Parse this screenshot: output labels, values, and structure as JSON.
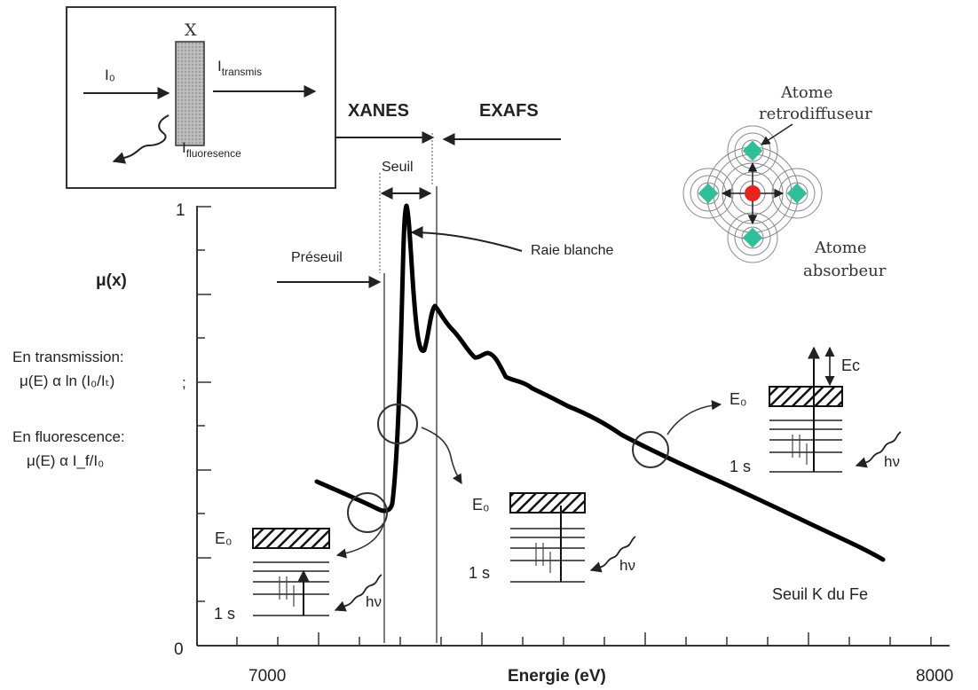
{
  "inset": {
    "x_label": "X",
    "i0_label": "I₀",
    "transmis_label": "I",
    "transmis_sub": "transmis",
    "fluo_label": "I",
    "fluo_sub": "fluoresence"
  },
  "regions": {
    "xanes": "XANES",
    "exafs": "EXAFS",
    "seuil": "Seuil",
    "preseuil": "Préseuil",
    "raie_blanche": "Raie blanche"
  },
  "y_axis": {
    "label": "μ(x)",
    "tick_top": "1",
    "tick_bottom": "0"
  },
  "left_text": {
    "transmission_title": "En transmission:",
    "transmission_formula": "μ(E) α ln (I₀/Iₜ)",
    "semicolon": ";",
    "fluorescence_title": "En fluorescence:",
    "fluorescence_formula": "μ(E) α I_f/I₀"
  },
  "x_axis": {
    "tick_left": "7000",
    "label": "Energie (eV)",
    "tick_right": "8000"
  },
  "atoms": {
    "retro": [
      "Atome",
      "retrodiffuseur"
    ],
    "absorb": [
      "Atome",
      "absorbeur"
    ]
  },
  "levels": {
    "e0": "E₀",
    "one_s": "1 s",
    "hv": "hν",
    "ec": "Ec"
  },
  "caption": "Seuil K du Fe",
  "colors": {
    "absorber_atom": "#e8231c",
    "backscatter_atom": "#2fbf9a",
    "curve": "#000000"
  }
}
